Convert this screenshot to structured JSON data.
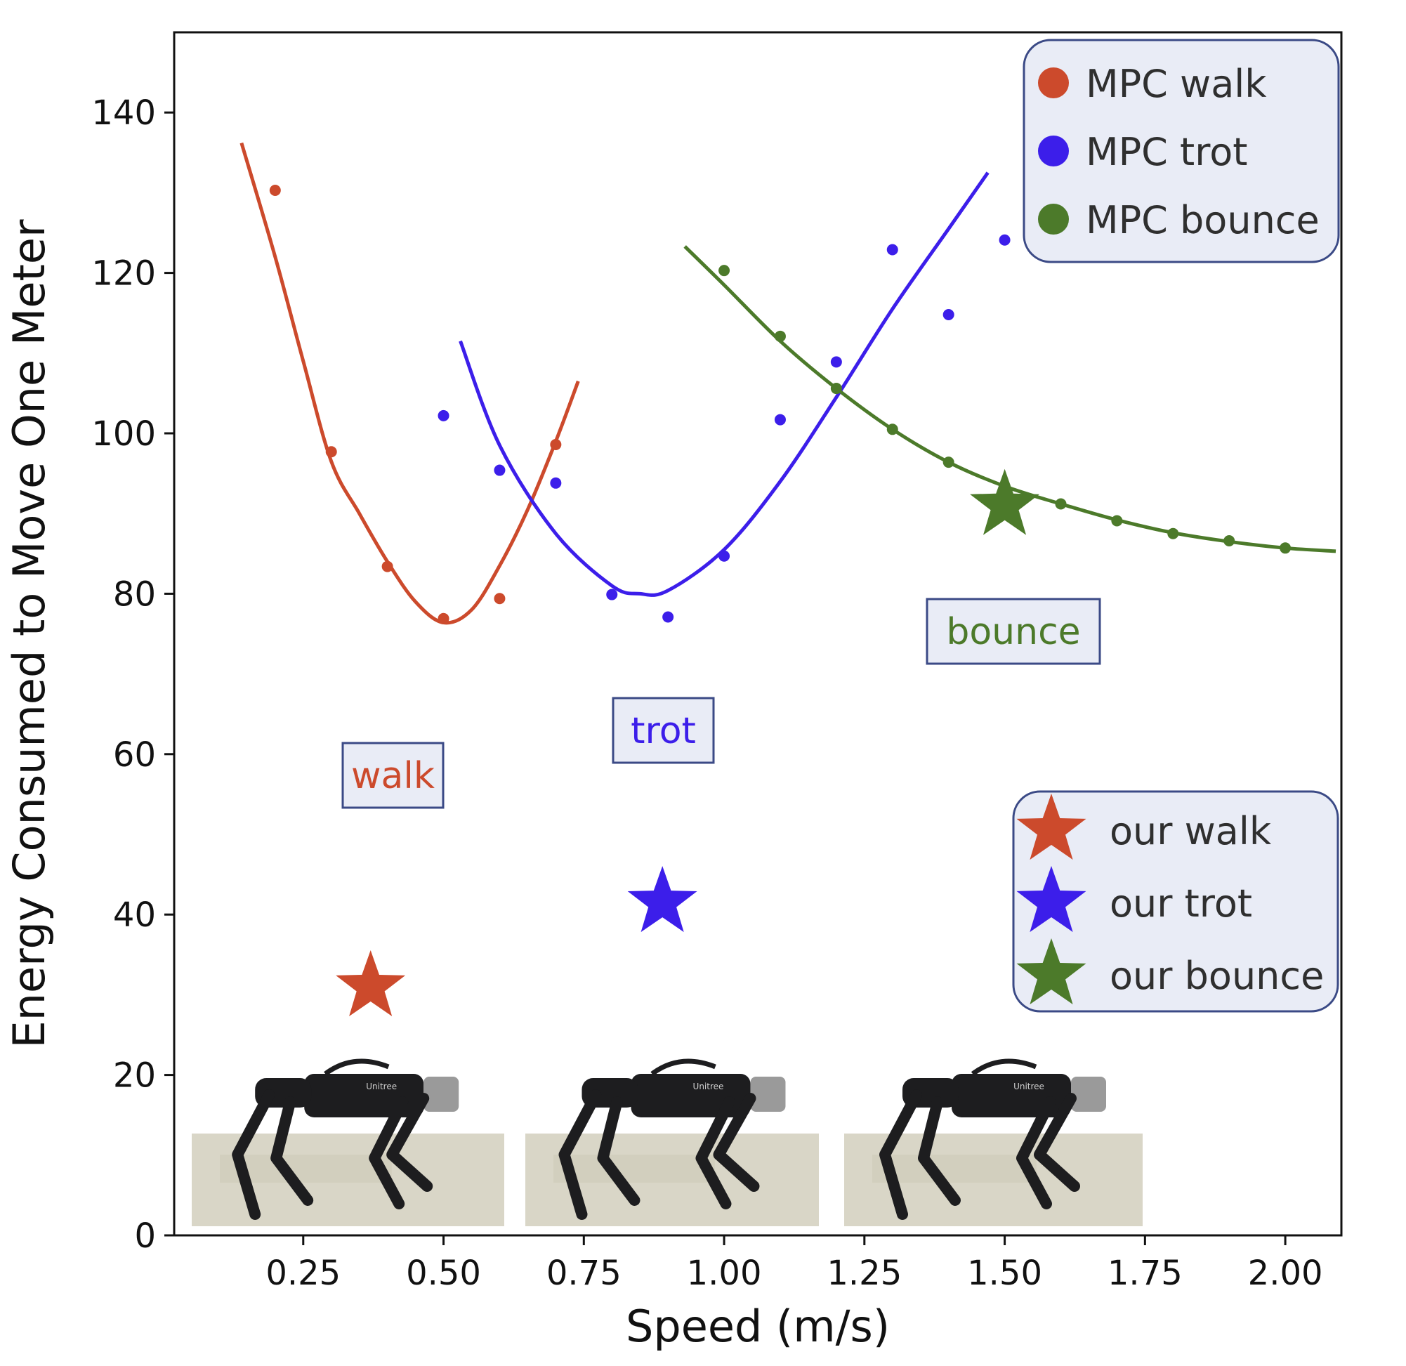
{
  "chart_data": {
    "type": "scatter",
    "xlabel": "Speed (m/s)",
    "ylabel": "Energy Consumed to Move One Meter",
    "xlim": [
      0.02,
      2.1
    ],
    "ylim": [
      0,
      150
    ],
    "xticks": [
      0.25,
      0.5,
      0.75,
      1.0,
      1.25,
      1.5,
      1.75,
      2.0
    ],
    "xtick_labels": [
      "0.25",
      "0.50",
      "0.75",
      "1.00",
      "1.25",
      "1.50",
      "1.75",
      "2.00"
    ],
    "yticks": [
      0,
      20,
      40,
      60,
      80,
      100,
      120,
      140
    ],
    "ytick_labels": [
      "0",
      "20",
      "40",
      "60",
      "80",
      "100",
      "120",
      "140"
    ],
    "grid": false,
    "series": [
      {
        "name": "MPC walk",
        "color": "#cc4a2c",
        "points": [
          [
            0.2,
            130.3
          ],
          [
            0.3,
            97.7
          ],
          [
            0.4,
            83.4
          ],
          [
            0.5,
            76.9
          ],
          [
            0.6,
            79.4
          ],
          [
            0.7,
            98.6
          ]
        ],
        "fit": [
          [
            0.14,
            136.2
          ],
          [
            0.2,
            122.0
          ],
          [
            0.25,
            109.0
          ],
          [
            0.3,
            96.5
          ],
          [
            0.35,
            90.0
          ],
          [
            0.4,
            84.0
          ],
          [
            0.45,
            79.0
          ],
          [
            0.5,
            76.4
          ],
          [
            0.55,
            78.0
          ],
          [
            0.6,
            83.5
          ],
          [
            0.65,
            90.5
          ],
          [
            0.7,
            99.0
          ],
          [
            0.74,
            106.5
          ]
        ]
      },
      {
        "name": "MPC trot",
        "color": "#3c1eea",
        "points": [
          [
            0.5,
            102.2
          ],
          [
            0.6,
            95.4
          ],
          [
            0.7,
            93.8
          ],
          [
            0.8,
            79.9
          ],
          [
            0.9,
            77.1
          ],
          [
            1.0,
            84.7
          ],
          [
            1.1,
            101.7
          ],
          [
            1.2,
            108.9
          ],
          [
            1.3,
            122.9
          ],
          [
            1.4,
            114.8
          ],
          [
            1.5,
            124.1
          ]
        ],
        "fit": [
          [
            0.53,
            111.5
          ],
          [
            0.6,
            98.5
          ],
          [
            0.7,
            87.5
          ],
          [
            0.8,
            81.0
          ],
          [
            0.85,
            80.0
          ],
          [
            0.9,
            80.4
          ],
          [
            1.0,
            85.5
          ],
          [
            1.1,
            94.0
          ],
          [
            1.2,
            104.5
          ],
          [
            1.3,
            115.5
          ],
          [
            1.4,
            125.5
          ],
          [
            1.47,
            132.5
          ]
        ]
      },
      {
        "name": "MPC bounce",
        "color": "#4c7a2a",
        "points": [
          [
            1.0,
            120.3
          ],
          [
            1.1,
            112.1
          ],
          [
            1.2,
            105.6
          ],
          [
            1.3,
            100.5
          ],
          [
            1.4,
            96.4
          ],
          [
            1.5,
            93.4
          ],
          [
            1.6,
            91.2
          ],
          [
            1.7,
            89.1
          ],
          [
            1.8,
            87.5
          ],
          [
            1.9,
            86.6
          ],
          [
            2.0,
            85.7
          ]
        ],
        "fit": [
          [
            0.93,
            123.3
          ],
          [
            1.0,
            118.5
          ],
          [
            1.1,
            111.5
          ],
          [
            1.2,
            105.6
          ],
          [
            1.3,
            100.5
          ],
          [
            1.4,
            96.4
          ],
          [
            1.5,
            93.4
          ],
          [
            1.6,
            91.2
          ],
          [
            1.7,
            89.2
          ],
          [
            1.8,
            87.6
          ],
          [
            1.9,
            86.5
          ],
          [
            2.0,
            85.7
          ],
          [
            2.09,
            85.3
          ]
        ]
      }
    ],
    "stars": [
      {
        "name": "our walk",
        "color": "#cc4a2c",
        "x": 0.37,
        "y": 31.0
      },
      {
        "name": "our trot",
        "color": "#3c1eea",
        "x": 0.89,
        "y": 41.5
      },
      {
        "name": "our bounce",
        "color": "#4c7a2a",
        "x": 1.5,
        "y": 91.0
      }
    ],
    "annotations": [
      {
        "text": "walk",
        "color": "#cc4a2c",
        "x": 0.42,
        "y": 58.0
      },
      {
        "text": "trot",
        "color": "#3c1eea",
        "x": 0.9,
        "y": 63.7
      },
      {
        "text": "bounce",
        "color": "#4c7a2a",
        "x": 1.49,
        "y": 75.8
      }
    ],
    "legend_top": {
      "placement": "top-right",
      "entries": [
        "MPC walk",
        "MPC trot",
        "MPC bounce"
      ]
    },
    "legend_bottom": {
      "placement": "lower-right",
      "entries": [
        "our walk",
        "our trot",
        "our bounce"
      ]
    },
    "robot_photos": [
      {
        "name": "walk",
        "brand": "Unitree"
      },
      {
        "name": "trot",
        "brand": "Unitree"
      },
      {
        "name": "bounce",
        "brand": "Unitree"
      }
    ]
  },
  "colors": {
    "axis": "#111111",
    "box_fill": "#e9ecf6",
    "box_border": "#3b4a86",
    "floor": "#d9d6c7",
    "robot": "#1d1d1f"
  }
}
